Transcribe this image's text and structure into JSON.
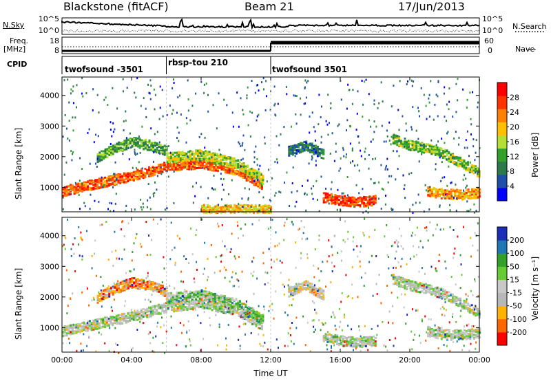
{
  "header": {
    "station": "Blackstone (fitACF)",
    "beam": "Beam 21",
    "date": "17/Jun/2013"
  },
  "side_labels": {
    "nsky": "N.Sky",
    "freq_line1": "Freq.",
    "freq_line2": "[MHz]",
    "cpid": "CPID",
    "nsearch": "N.Search",
    "nave": "Nave"
  },
  "noise_ticks": {
    "left": [
      "10^5",
      "10^0"
    ],
    "right": [
      "10^5",
      "10^0"
    ]
  },
  "freq_ticks": {
    "left": [
      "18",
      "8"
    ],
    "right": [
      "60",
      "0"
    ]
  },
  "cpid_segments": [
    {
      "label": "twofsound -3501",
      "start_h": 0,
      "end_h": 6
    },
    {
      "label": "rbsp-tou 210",
      "start_h": 6,
      "end_h": 12
    },
    {
      "label": "twofsound 3501",
      "start_h": 12,
      "end_h": 24
    }
  ],
  "colors": {
    "power_scale": [
      "#0000ff",
      "#1f4faa",
      "#2c7a4b",
      "#33a02c",
      "#b3e033",
      "#ffc000",
      "#ff7f00",
      "#ff3300",
      "#ff0000"
    ],
    "velocity_scale": [
      "#1a2eb8",
      "#1f78b4",
      "#33a02c",
      "#66cc33",
      "#c8c8c8",
      "#b8b8b8",
      "#ffb300",
      "#ff6600",
      "#ff0000"
    ]
  },
  "chart_data": [
    {
      "type": "heatmap",
      "ylabel": "Slant Range [km]",
      "xlabel": "",
      "xlim": [
        0,
        24
      ],
      "ylim": [
        200,
        4600
      ],
      "yticks": [
        1000,
        2000,
        3000,
        4000
      ],
      "colorbar": {
        "label": "Power [dB]",
        "ticks": [
          "28",
          "24",
          "20",
          "16",
          "12",
          "8",
          "4"
        ],
        "range": [
          0,
          32
        ]
      },
      "bands": [
        {
          "x": [
            0,
            2,
            4,
            6,
            8,
            10,
            11.5
          ],
          "y": [
            900,
            1150,
            1400,
            1700,
            1800,
            1600,
            1100
          ],
          "level": 25
        },
        {
          "x": [
            2,
            3,
            4,
            5,
            6
          ],
          "y": [
            2000,
            2300,
            2500,
            2400,
            2200
          ],
          "level": 12
        },
        {
          "x": [
            6,
            8,
            10,
            11.5
          ],
          "y": [
            2000,
            2100,
            1800,
            1300
          ],
          "level": 16
        },
        {
          "x": [
            13,
            14,
            15
          ],
          "y": [
            2200,
            2400,
            2100
          ],
          "level": 8
        },
        {
          "x": [
            15,
            16,
            17,
            18
          ],
          "y": [
            700,
            600,
            550,
            600
          ],
          "level": 27
        },
        {
          "x": [
            19,
            20,
            21,
            22,
            23,
            24
          ],
          "y": [
            2600,
            2400,
            2300,
            2100,
            1800,
            1500
          ],
          "level": 14
        },
        {
          "x": [
            21,
            22,
            23,
            24
          ],
          "y": [
            900,
            800,
            800,
            850
          ],
          "level": 22
        },
        {
          "x": [
            8,
            10,
            12
          ],
          "y": [
            300,
            300,
            300
          ],
          "level": 20
        }
      ]
    },
    {
      "type": "heatmap",
      "ylabel": "Slant Range [km]",
      "xlabel": "Time UT",
      "xlim": [
        0,
        24
      ],
      "ylim": [
        200,
        4600
      ],
      "yticks": [
        1000,
        2000,
        3000,
        4000
      ],
      "xticks": [
        "00:00",
        "04:00",
        "08:00",
        "12:00",
        "16:00",
        "20:00",
        "00:00"
      ],
      "colorbar": {
        "label": "Velocity [m s⁻¹]",
        "ticks": [
          "200",
          "100",
          "50",
          "15",
          "-15",
          "-50",
          "-100",
          "-200"
        ],
        "range": [
          -250,
          250
        ]
      },
      "bands": [
        {
          "x": [
            0,
            2,
            4,
            6,
            8,
            10,
            11.5
          ],
          "y": [
            900,
            1150,
            1400,
            1700,
            1800,
            1600,
            1100
          ],
          "level": 0
        },
        {
          "x": [
            2,
            3,
            4,
            5,
            6
          ],
          "y": [
            2000,
            2300,
            2500,
            2400,
            2200
          ],
          "level": -120
        },
        {
          "x": [
            6,
            8,
            10,
            11.5
          ],
          "y": [
            2000,
            2100,
            1800,
            1300
          ],
          "level": 60
        },
        {
          "x": [
            13,
            14,
            15
          ],
          "y": [
            2200,
            2400,
            2100
          ],
          "level": -60
        },
        {
          "x": [
            15,
            16,
            17,
            18
          ],
          "y": [
            700,
            600,
            550,
            600
          ],
          "level": 0
        },
        {
          "x": [
            19,
            20,
            21,
            22,
            23,
            24
          ],
          "y": [
            2600,
            2400,
            2300,
            2100,
            1800,
            1500
          ],
          "level": 0
        },
        {
          "x": [
            21,
            22,
            23,
            24
          ],
          "y": [
            900,
            800,
            800,
            850
          ],
          "level": 0
        }
      ]
    }
  ]
}
